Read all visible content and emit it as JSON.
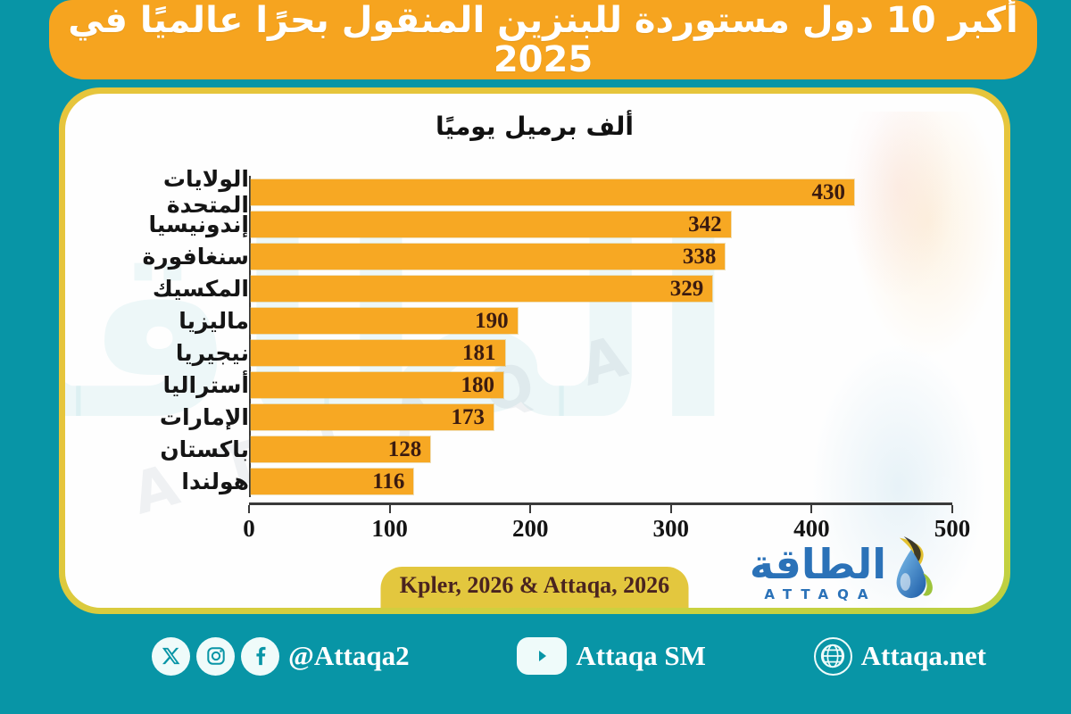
{
  "banner": {
    "title": "أكبر 10 دول مستوردة للبنزين المنقول بحرًا عالميًا في 2025",
    "bg_color": "#F6A41F"
  },
  "chart_data": {
    "type": "bar",
    "orientation": "horizontal",
    "title": "ألف برميل يوميًا",
    "categories": [
      "الولايات المتحدة",
      "إندونيسيا",
      "سنغافورة",
      "المكسيك",
      "ماليزيا",
      "نيجيريا",
      "أستراليا",
      "الإمارات",
      "باكستان",
      "هولندا"
    ],
    "values": [
      430,
      342,
      338,
      329,
      190,
      181,
      180,
      173,
      128,
      116
    ],
    "xlim": [
      0,
      500
    ],
    "x_ticks": [
      0,
      100,
      200,
      300,
      400,
      500
    ],
    "grid": "off",
    "bar_color": "#F7A823",
    "value_label_color": "#3B1B10"
  },
  "source_badge": {
    "label": "Kpler, 2026 & Attaqa, 2026"
  },
  "logo": {
    "arabic": "الطاقة",
    "latin": "ATTAQA"
  },
  "watermark": {
    "arabic": "الطاقة",
    "latin": "ATTAQA"
  },
  "footer": {
    "social_handle": "@Attaqa2",
    "sm_label": "Attaqa SM",
    "website": "Attaqa.net"
  },
  "colors": {
    "background": "#0895A6",
    "card_border_yellow": "#E6C53C",
    "card_border_green": "#BCCF3D",
    "accent_purple": "#7B68A8",
    "logo_blue": "#2B72B8"
  }
}
